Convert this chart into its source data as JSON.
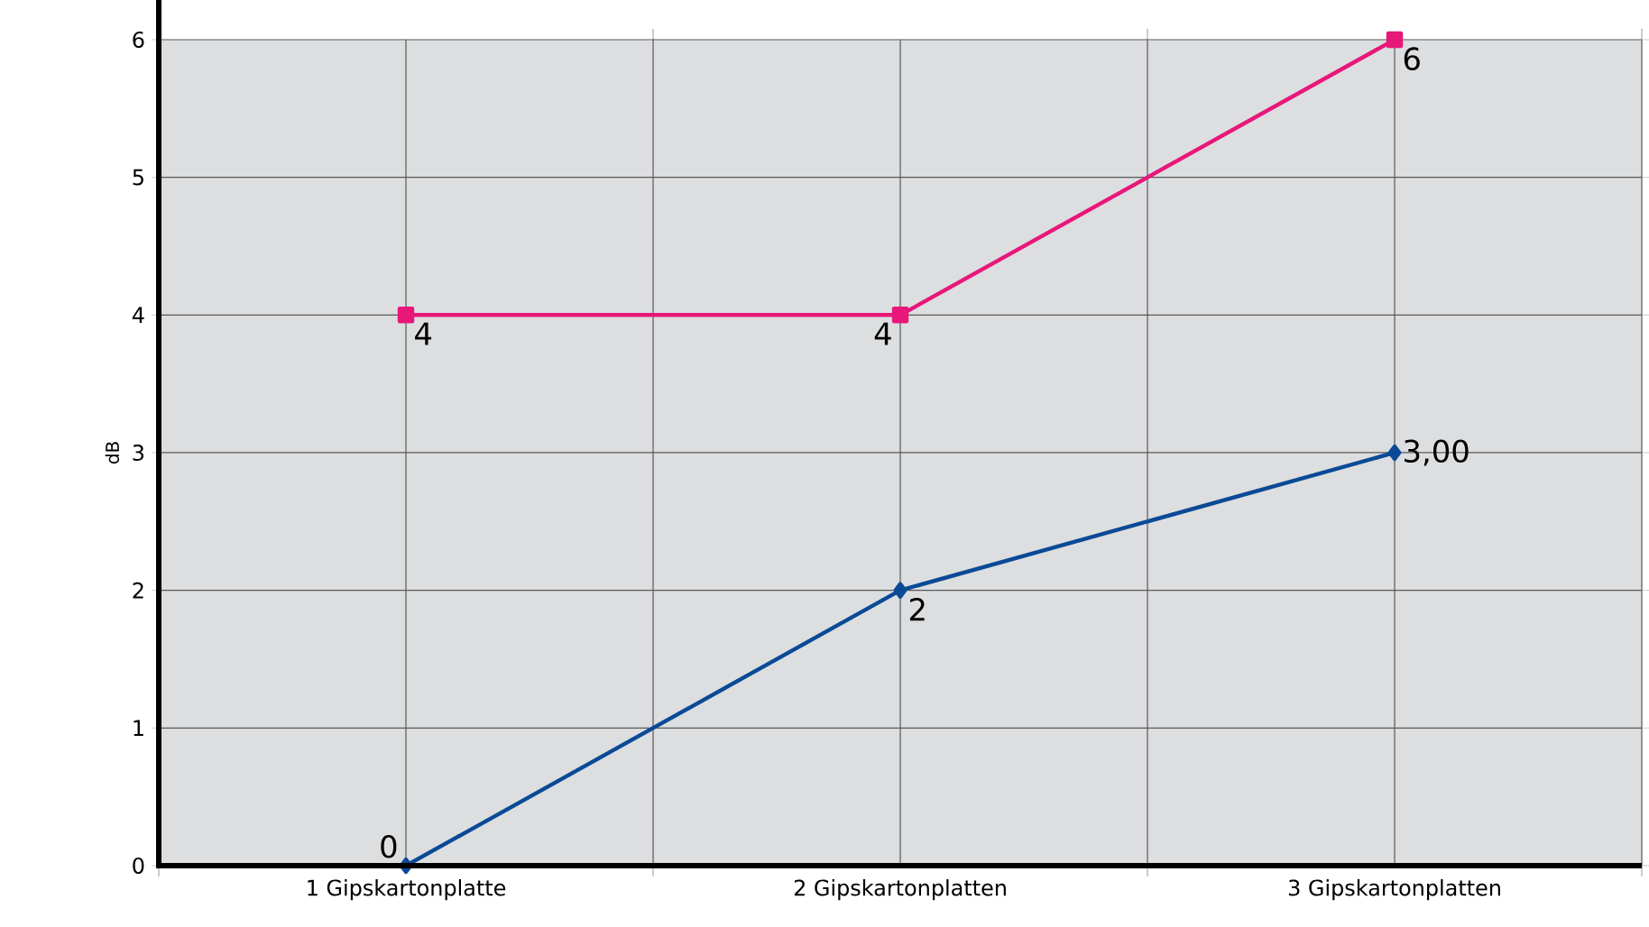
{
  "chart_data": {
    "type": "line",
    "ylabel": "dB",
    "categories": [
      "1 Gipskartonplatte",
      "2 Gipskartonplatten",
      "3 Gipskartonplatten"
    ],
    "ylim": [
      0,
      6
    ],
    "yticks": [
      0,
      1,
      2,
      3,
      4,
      5,
      6
    ],
    "grid": true,
    "series": [
      {
        "color": "#0a4a96",
        "marker": "diamond",
        "values": [
          0,
          2,
          3
        ],
        "value_labels": [
          "0",
          "2",
          "3,00"
        ]
      },
      {
        "color": "#e8177a",
        "marker": "square",
        "values": [
          4,
          4,
          6
        ],
        "value_labels": [
          "4",
          "4",
          "6"
        ]
      }
    ]
  }
}
